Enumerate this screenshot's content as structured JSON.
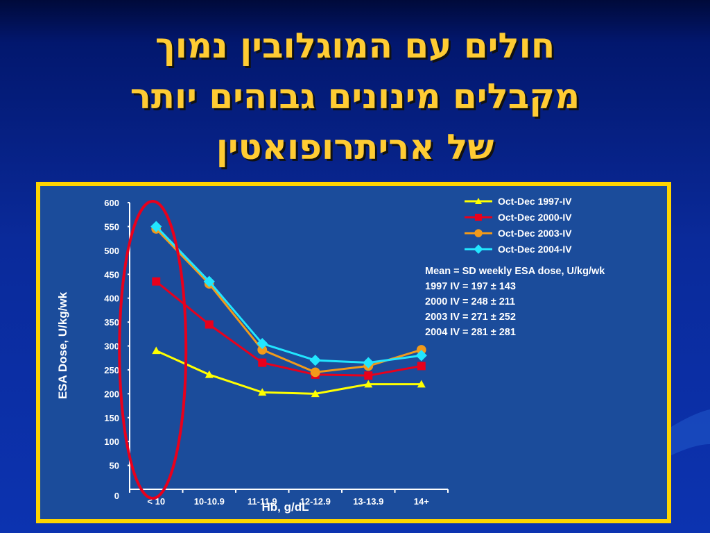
{
  "slide": {
    "title_lines": [
      "חולים עם המוגלובין נמוך",
      "מקבלים מינונים גבוהים יותר",
      "של אריתרופואטין"
    ]
  },
  "annotations": {
    "stats_lines": [
      "Mean = SD weekly ESA dose, U/kg/wk",
      "1997 IV = 197 ± 143",
      "2000 IV = 248 ± 211",
      "2003 IV = 271 ± 252",
      "2004 IV = 281 ± 281"
    ]
  },
  "chart_data": {
    "type": "line",
    "xlabel": "Hb, g/dL",
    "ylabel": "ESA Dose, U/kg/wk",
    "categories": [
      "< 10",
      "10-10.9",
      "11-11.9",
      "12-12.9",
      "13-13.9",
      "14+"
    ],
    "yticks": [
      0,
      50,
      100,
      150,
      200,
      250,
      300,
      350,
      400,
      450,
      500,
      550,
      600
    ],
    "ylim": [
      0,
      600
    ],
    "legend_position": "top-right",
    "series": [
      {
        "name": "Oct-Dec 1997-IV",
        "color": "#ffff00",
        "marker": "triangle",
        "values": [
          290,
          240,
          203,
          200,
          220,
          220
        ]
      },
      {
        "name": "Oct-Dec 2000-IV",
        "color": "#e8001c",
        "marker": "square",
        "values": [
          435,
          345,
          265,
          240,
          238,
          258
        ]
      },
      {
        "name": "Oct-Dec 2003-IV",
        "color": "#f29a1a",
        "marker": "circle",
        "values": [
          545,
          430,
          292,
          245,
          258,
          292
        ]
      },
      {
        "name": "Oct-Dec 2004-IV",
        "color": "#22e6ff",
        "marker": "diamond",
        "values": [
          550,
          435,
          305,
          270,
          265,
          280
        ]
      }
    ],
    "highlight": {
      "shape": "ellipse",
      "color": "#e8001c",
      "category": "< 10"
    }
  }
}
